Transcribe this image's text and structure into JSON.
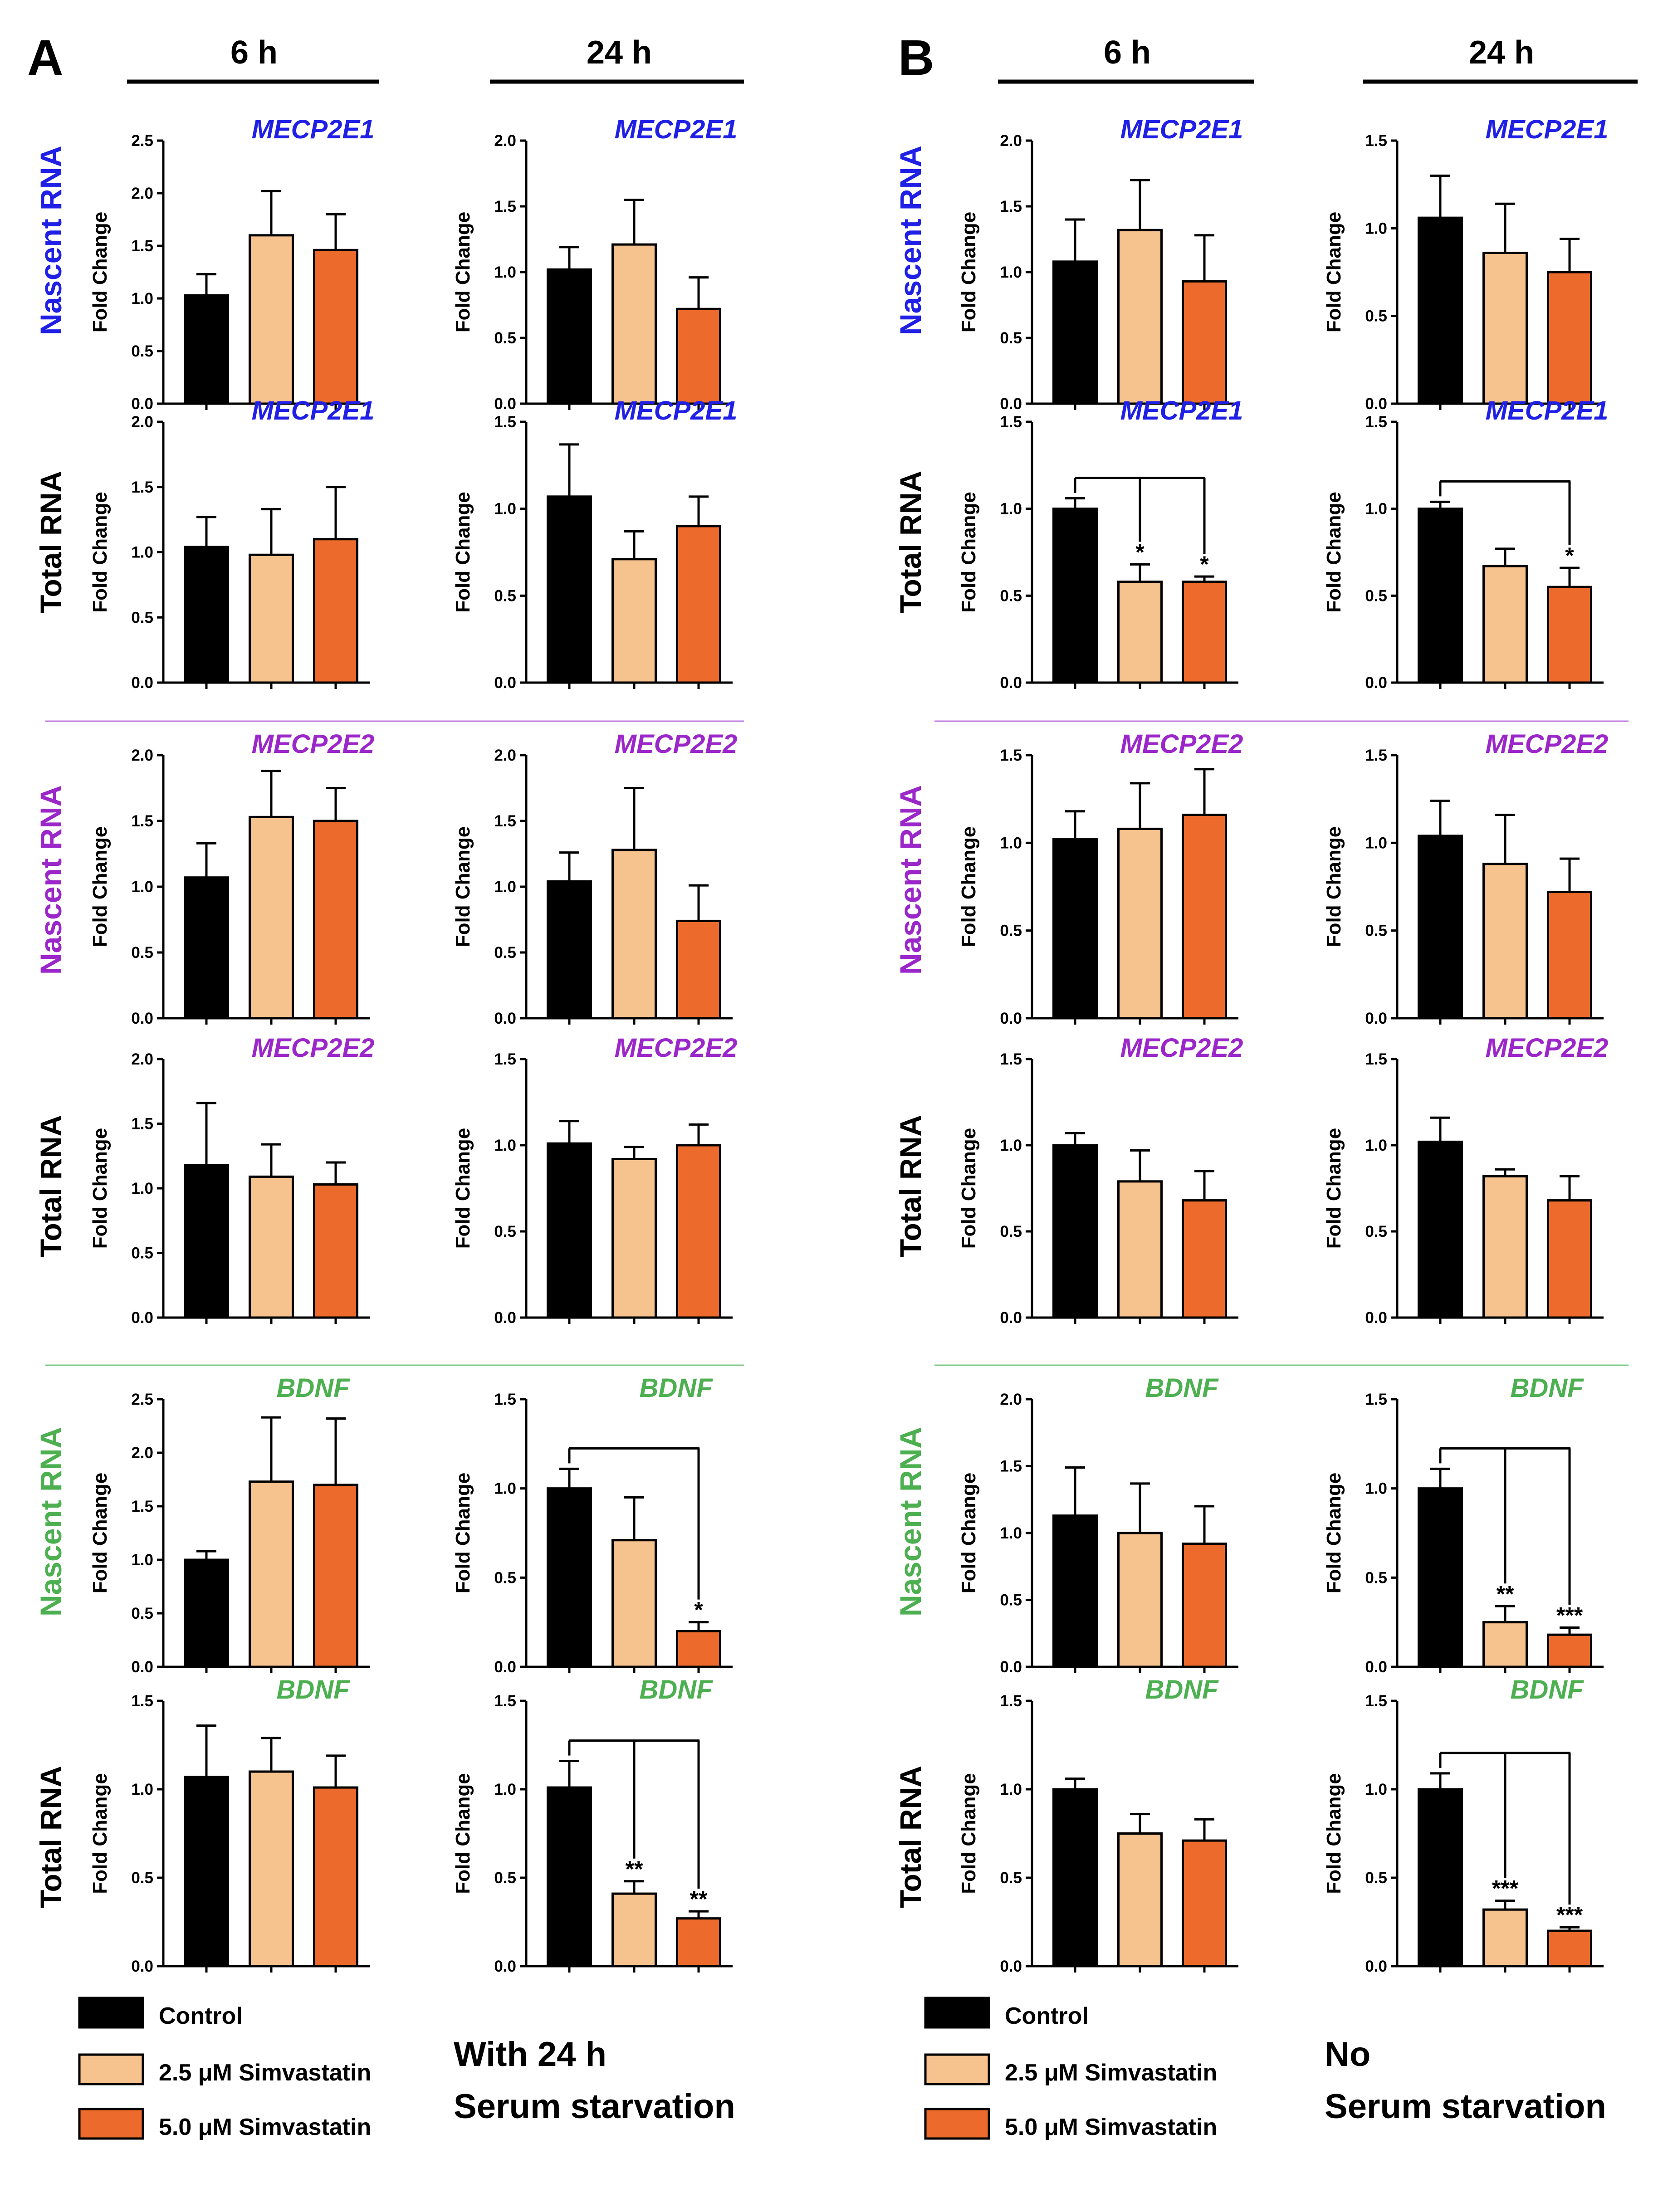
{
  "panels": [
    {
      "label": "A",
      "time_headers": [
        "6 h",
        "24 h"
      ],
      "condition": [
        "With 24 h",
        "Serum starvation"
      ]
    },
    {
      "label": "B",
      "time_headers": [
        "6 h",
        "24 h"
      ],
      "condition": [
        "No",
        "Serum starvation"
      ]
    }
  ],
  "legend": [
    {
      "label": "Control",
      "color": "#000000"
    },
    {
      "label": "2.5 μM Simvastatin",
      "color": "#F6C28E"
    },
    {
      "label": "5.0 μM Simvastatin",
      "color": "#EC6A2C"
    }
  ],
  "colors": {
    "MECP2E1": "#1F1FE6",
    "MECP2E2": "#9B26C9",
    "BDNF": "#4CAF50",
    "divider_MECP2E2": "#C07BE0",
    "divider_BDNF": "#7FC98A"
  },
  "chart_data": [
    {
      "type": "bar",
      "id": "A-MECP2E1-nascent-6h",
      "panel": "A",
      "time": "6 h",
      "gene": "MECP2E1",
      "row": "Nascent RNA",
      "ylabel": "Fold Change",
      "ylim": [
        0,
        2.5
      ],
      "yticks": [
        "0.0",
        "0.5",
        "1.0",
        "1.5",
        "2.0",
        "2.5"
      ],
      "categories": [
        "Control",
        "2.5 μM Simvastatin",
        "5.0 μM Simvastatin"
      ],
      "values": [
        1.03,
        1.6,
        1.46
      ],
      "errors": [
        0.2,
        0.42,
        0.34
      ],
      "significance": []
    },
    {
      "type": "bar",
      "id": "A-MECP2E1-nascent-24h",
      "panel": "A",
      "time": "24 h",
      "gene": "MECP2E1",
      "row": "Nascent RNA",
      "ylabel": "Fold Change",
      "ylim": [
        0,
        2.0
      ],
      "yticks": [
        "0.0",
        "0.5",
        "1.0",
        "1.5",
        "2.0"
      ],
      "categories": [
        "Control",
        "2.5 μM Simvastatin",
        "5.0 μM Simvastatin"
      ],
      "values": [
        1.02,
        1.21,
        0.72
      ],
      "errors": [
        0.17,
        0.34,
        0.24
      ],
      "significance": []
    },
    {
      "type": "bar",
      "id": "A-MECP2E1-total-6h",
      "panel": "A",
      "time": "6 h",
      "gene": "MECP2E1",
      "row": "Total RNA",
      "ylabel": "Fold Change",
      "ylim": [
        0,
        2.0
      ],
      "yticks": [
        "0.0",
        "0.5",
        "1.0",
        "1.5",
        "2.0"
      ],
      "categories": [
        "Control",
        "2.5 μM Simvastatin",
        "5.0 μM Simvastatin"
      ],
      "values": [
        1.04,
        0.98,
        1.1
      ],
      "errors": [
        0.23,
        0.35,
        0.4
      ],
      "significance": []
    },
    {
      "type": "bar",
      "id": "A-MECP2E1-total-24h",
      "panel": "A",
      "time": "24 h",
      "gene": "MECP2E1",
      "row": "Total RNA",
      "ylabel": "Fold Change",
      "ylim": [
        0,
        1.5
      ],
      "yticks": [
        "0.0",
        "0.5",
        "1.0",
        "1.5"
      ],
      "categories": [
        "Control",
        "2.5 μM Simvastatin",
        "5.0 μM Simvastatin"
      ],
      "values": [
        1.07,
        0.71,
        0.9
      ],
      "errors": [
        0.3,
        0.16,
        0.17
      ],
      "significance": []
    },
    {
      "type": "bar",
      "id": "A-MECP2E2-nascent-6h",
      "panel": "A",
      "time": "6 h",
      "gene": "MECP2E2",
      "row": "Nascent RNA",
      "ylabel": "Fold Change",
      "ylim": [
        0,
        2.0
      ],
      "yticks": [
        "0.0",
        "0.5",
        "1.0",
        "1.5",
        "2.0"
      ],
      "categories": [
        "Control",
        "2.5 μM Simvastatin",
        "5.0 μM Simvastatin"
      ],
      "values": [
        1.07,
        1.53,
        1.5
      ],
      "errors": [
        0.26,
        0.35,
        0.25
      ],
      "significance": []
    },
    {
      "type": "bar",
      "id": "A-MECP2E2-nascent-24h",
      "panel": "A",
      "time": "24 h",
      "gene": "MECP2E2",
      "row": "Nascent RNA",
      "ylabel": "Fold Change",
      "ylim": [
        0,
        2.0
      ],
      "yticks": [
        "0.0",
        "0.5",
        "1.0",
        "1.5",
        "2.0"
      ],
      "categories": [
        "Control",
        "2.5 μM Simvastatin",
        "5.0 μM Simvastatin"
      ],
      "values": [
        1.04,
        1.28,
        0.74
      ],
      "errors": [
        0.22,
        0.47,
        0.27
      ],
      "significance": []
    },
    {
      "type": "bar",
      "id": "A-MECP2E2-total-6h",
      "panel": "A",
      "time": "6 h",
      "gene": "MECP2E2",
      "row": "Total RNA",
      "ylabel": "Fold Change",
      "ylim": [
        0,
        2.0
      ],
      "yticks": [
        "0.0",
        "0.5",
        "1.0",
        "1.5",
        "2.0"
      ],
      "categories": [
        "Control",
        "2.5 μM Simvastatin",
        "5.0 μM Simvastatin"
      ],
      "values": [
        1.18,
        1.09,
        1.03
      ],
      "errors": [
        0.48,
        0.25,
        0.17
      ],
      "significance": []
    },
    {
      "type": "bar",
      "id": "A-MECP2E2-total-24h",
      "panel": "A",
      "time": "24 h",
      "gene": "MECP2E2",
      "row": "Total RNA",
      "ylabel": "Fold Change",
      "ylim": [
        0,
        1.5
      ],
      "yticks": [
        "0.0",
        "0.5",
        "1.0",
        "1.5"
      ],
      "categories": [
        "Control",
        "2.5 μM Simvastatin",
        "5.0 μM Simvastatin"
      ],
      "values": [
        1.01,
        0.92,
        1.0
      ],
      "errors": [
        0.13,
        0.07,
        0.12
      ],
      "significance": []
    },
    {
      "type": "bar",
      "id": "A-BDNF-nascent-6h",
      "panel": "A",
      "time": "6 h",
      "gene": "BDNF",
      "row": "Nascent RNA",
      "ylabel": "Fold Change",
      "ylim": [
        0,
        2.5
      ],
      "yticks": [
        "0.0",
        "0.5",
        "1.0",
        "1.5",
        "2.0",
        "2.5"
      ],
      "categories": [
        "Control",
        "2.5 μM Simvastatin",
        "5.0 μM Simvastatin"
      ],
      "values": [
        1.0,
        1.73,
        1.7
      ],
      "errors": [
        0.08,
        0.6,
        0.62
      ],
      "significance": []
    },
    {
      "type": "bar",
      "id": "A-BDNF-nascent-24h",
      "panel": "A",
      "time": "24 h",
      "gene": "BDNF",
      "row": "Nascent RNA",
      "ylabel": "Fold Change",
      "ylim": [
        0,
        1.5
      ],
      "yticks": [
        "0.0",
        "0.5",
        "1.0",
        "1.5"
      ],
      "categories": [
        "Control",
        "2.5 μM Simvastatin",
        "5.0 μM Simvastatin"
      ],
      "values": [
        1.0,
        0.71,
        0.2
      ],
      "errors": [
        0.11,
        0.24,
        0.05
      ],
      "significance": [
        {
          "group": 2,
          "label": "*"
        }
      ]
    },
    {
      "type": "bar",
      "id": "A-BDNF-total-6h",
      "panel": "A",
      "time": "6 h",
      "gene": "BDNF",
      "row": "Total RNA",
      "ylabel": "Fold Change",
      "ylim": [
        0,
        1.5
      ],
      "yticks": [
        "0.0",
        "0.5",
        "1.0",
        "1.5"
      ],
      "categories": [
        "Control",
        "2.5 μM Simvastatin",
        "5.0 μM Simvastatin"
      ],
      "values": [
        1.07,
        1.1,
        1.01
      ],
      "errors": [
        0.29,
        0.19,
        0.18
      ],
      "significance": []
    },
    {
      "type": "bar",
      "id": "A-BDNF-total-24h",
      "panel": "A",
      "time": "24 h",
      "gene": "BDNF",
      "row": "Total RNA",
      "ylabel": "Fold Change",
      "ylim": [
        0,
        1.5
      ],
      "yticks": [
        "0.0",
        "0.5",
        "1.0",
        "1.5"
      ],
      "categories": [
        "Control",
        "2.5 μM Simvastatin",
        "5.0 μM Simvastatin"
      ],
      "values": [
        1.01,
        0.41,
        0.27
      ],
      "errors": [
        0.15,
        0.07,
        0.04
      ],
      "significance": [
        {
          "group": 1,
          "label": "**"
        },
        {
          "group": 2,
          "label": "**"
        }
      ]
    },
    {
      "type": "bar",
      "id": "B-MECP2E1-nascent-6h",
      "panel": "B",
      "time": "6 h",
      "gene": "MECP2E1",
      "row": "Nascent RNA",
      "ylabel": "Fold Change",
      "ylim": [
        0,
        2.0
      ],
      "yticks": [
        "0.0",
        "0.5",
        "1.0",
        "1.5",
        "2.0"
      ],
      "categories": [
        "Control",
        "2.5 μM Simvastatin",
        "5.0 μM Simvastatin"
      ],
      "values": [
        1.08,
        1.32,
        0.93
      ],
      "errors": [
        0.32,
        0.38,
        0.35
      ],
      "significance": []
    },
    {
      "type": "bar",
      "id": "B-MECP2E1-nascent-24h",
      "panel": "B",
      "time": "24 h",
      "gene": "MECP2E1",
      "row": "Nascent RNA",
      "ylabel": "Fold Change",
      "ylim": [
        0,
        1.5
      ],
      "yticks": [
        "0.0",
        "0.5",
        "1.0",
        "1.5"
      ],
      "categories": [
        "Control",
        "2.5 μM Simvastatin",
        "5.0 μM Simvastatin"
      ],
      "values": [
        1.06,
        0.86,
        0.75
      ],
      "errors": [
        0.24,
        0.28,
        0.19
      ],
      "significance": []
    },
    {
      "type": "bar",
      "id": "B-MECP2E1-total-6h",
      "panel": "B",
      "time": "6 h",
      "gene": "MECP2E1",
      "row": "Total RNA",
      "ylabel": "Fold Change",
      "ylim": [
        0,
        1.5
      ],
      "yticks": [
        "0.0",
        "0.5",
        "1.0",
        "1.5"
      ],
      "categories": [
        "Control",
        "2.5 μM Simvastatin",
        "5.0 μM Simvastatin"
      ],
      "values": [
        1.0,
        0.58,
        0.58
      ],
      "errors": [
        0.06,
        0.1,
        0.03
      ],
      "significance": [
        {
          "group": 1,
          "label": "*"
        },
        {
          "group": 2,
          "label": "*"
        }
      ]
    },
    {
      "type": "bar",
      "id": "B-MECP2E1-total-24h",
      "panel": "B",
      "time": "24 h",
      "gene": "MECP2E1",
      "row": "Total RNA",
      "ylabel": "Fold Change",
      "ylim": [
        0,
        1.5
      ],
      "yticks": [
        "0.0",
        "0.5",
        "1.0",
        "1.5"
      ],
      "categories": [
        "Control",
        "2.5 μM Simvastatin",
        "5.0 μM Simvastatin"
      ],
      "values": [
        1.0,
        0.67,
        0.55
      ],
      "errors": [
        0.04,
        0.1,
        0.11
      ],
      "significance": [
        {
          "group": 2,
          "label": "*"
        }
      ]
    },
    {
      "type": "bar",
      "id": "B-MECP2E2-nascent-6h",
      "panel": "B",
      "time": "6 h",
      "gene": "MECP2E2",
      "row": "Nascent RNA",
      "ylabel": "Fold Change",
      "ylim": [
        0,
        1.5
      ],
      "yticks": [
        "0.0",
        "0.5",
        "1.0",
        "1.5"
      ],
      "categories": [
        "Control",
        "2.5 μM Simvastatin",
        "5.0 μM Simvastatin"
      ],
      "values": [
        1.02,
        1.08,
        1.16
      ],
      "errors": [
        0.16,
        0.26,
        0.26
      ],
      "significance": []
    },
    {
      "type": "bar",
      "id": "B-MECP2E2-nascent-24h",
      "panel": "B",
      "time": "24 h",
      "gene": "MECP2E2",
      "row": "Nascent RNA",
      "ylabel": "Fold Change",
      "ylim": [
        0,
        1.5
      ],
      "yticks": [
        "0.0",
        "0.5",
        "1.0",
        "1.5"
      ],
      "categories": [
        "Control",
        "2.5 μM Simvastatin",
        "5.0 μM Simvastatin"
      ],
      "values": [
        1.04,
        0.88,
        0.72
      ],
      "errors": [
        0.2,
        0.28,
        0.19
      ],
      "significance": []
    },
    {
      "type": "bar",
      "id": "B-MECP2E2-total-6h",
      "panel": "B",
      "time": "6 h",
      "gene": "MECP2E2",
      "row": "Total RNA",
      "ylabel": "Fold Change",
      "ylim": [
        0,
        1.5
      ],
      "yticks": [
        "0.0",
        "0.5",
        "1.0",
        "1.5"
      ],
      "categories": [
        "Control",
        "2.5 μM Simvastatin",
        "5.0 μM Simvastatin"
      ],
      "values": [
        1.0,
        0.79,
        0.68
      ],
      "errors": [
        0.07,
        0.18,
        0.17
      ],
      "significance": []
    },
    {
      "type": "bar",
      "id": "B-MECP2E2-total-24h",
      "panel": "B",
      "time": "24 h",
      "gene": "MECP2E2",
      "row": "Total RNA",
      "ylabel": "Fold Change",
      "ylim": [
        0,
        1.5
      ],
      "yticks": [
        "0.0",
        "0.5",
        "1.0",
        "1.5"
      ],
      "categories": [
        "Control",
        "2.5 μM Simvastatin",
        "5.0 μM Simvastatin"
      ],
      "values": [
        1.02,
        0.82,
        0.68
      ],
      "errors": [
        0.14,
        0.04,
        0.14
      ],
      "significance": []
    },
    {
      "type": "bar",
      "id": "B-BDNF-nascent-6h",
      "panel": "B",
      "time": "6 h",
      "gene": "BDNF",
      "row": "Nascent RNA",
      "ylabel": "Fold Change",
      "ylim": [
        0,
        2.0
      ],
      "yticks": [
        "0.0",
        "0.5",
        "1.0",
        "1.5",
        "2.0"
      ],
      "categories": [
        "Control",
        "2.5 μM Simvastatin",
        "5.0 μM Simvastatin"
      ],
      "values": [
        1.13,
        1.0,
        0.92
      ],
      "errors": [
        0.36,
        0.37,
        0.28
      ],
      "significance": []
    },
    {
      "type": "bar",
      "id": "B-BDNF-nascent-24h",
      "panel": "B",
      "time": "24 h",
      "gene": "BDNF",
      "row": "Nascent RNA",
      "ylabel": "Fold Change",
      "ylim": [
        0,
        1.5
      ],
      "yticks": [
        "0.0",
        "0.5",
        "1.0",
        "1.5"
      ],
      "categories": [
        "Control",
        "2.5 μM Simvastatin",
        "5.0 μM Simvastatin"
      ],
      "values": [
        1.0,
        0.25,
        0.18
      ],
      "errors": [
        0.11,
        0.09,
        0.04
      ],
      "significance": [
        {
          "group": 1,
          "label": "**"
        },
        {
          "group": 2,
          "label": "***"
        }
      ]
    },
    {
      "type": "bar",
      "id": "B-BDNF-total-6h",
      "panel": "B",
      "time": "6 h",
      "gene": "BDNF",
      "row": "Total RNA",
      "ylabel": "Fold Change",
      "ylim": [
        0,
        1.5
      ],
      "yticks": [
        "0.0",
        "0.5",
        "1.0",
        "1.5"
      ],
      "categories": [
        "Control",
        "2.5 μM Simvastatin",
        "5.0 μM Simvastatin"
      ],
      "values": [
        1.0,
        0.75,
        0.71
      ],
      "errors": [
        0.06,
        0.11,
        0.12
      ],
      "significance": []
    },
    {
      "type": "bar",
      "id": "B-BDNF-total-24h",
      "panel": "B",
      "time": "24 h",
      "gene": "BDNF",
      "row": "Total RNA",
      "ylabel": "Fold Change",
      "ylim": [
        0,
        1.5
      ],
      "yticks": [
        "0.0",
        "0.5",
        "1.0",
        "1.5"
      ],
      "categories": [
        "Control",
        "2.5 μM Simvastatin",
        "5.0 μM Simvastatin"
      ],
      "values": [
        1.0,
        0.32,
        0.2
      ],
      "errors": [
        0.09,
        0.05,
        0.02
      ],
      "significance": [
        {
          "group": 1,
          "label": "***"
        },
        {
          "group": 2,
          "label": "***"
        }
      ]
    }
  ]
}
